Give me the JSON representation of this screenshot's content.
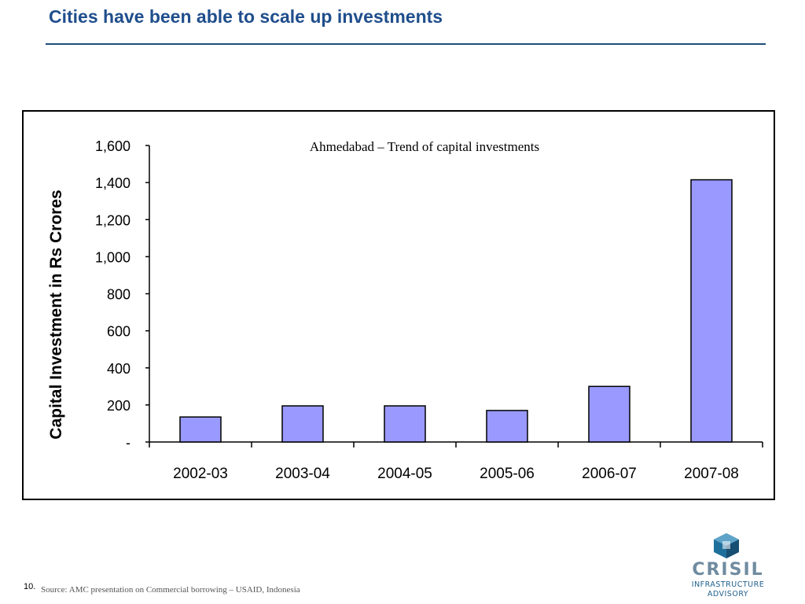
{
  "slide": {
    "title": "Cities have been able to scale up investments",
    "page_number": "10.",
    "source": "Source: AMC presentation on Commercial borrowing – USAID, Indonesia"
  },
  "logo": {
    "name": "CRISIL",
    "line1": "INFRASTRUCTURE",
    "line2": "ADVISORY"
  },
  "colors": {
    "title": "#1f4e8c",
    "bar_fill": "#9999ff",
    "bar_stroke": "#000000"
  },
  "chart_data": {
    "type": "bar",
    "title": "Ahmedabad – Trend of capital investments",
    "xlabel": "",
    "ylabel": "Capital Investment in Rs Crores",
    "categories": [
      "2002-03",
      "2003-04",
      "2004-05",
      "2005-06",
      "2006-07",
      "2007-08"
    ],
    "values": [
      135,
      195,
      195,
      170,
      300,
      1415
    ],
    "ylim": [
      0,
      1600
    ],
    "yticks": [
      0,
      200,
      400,
      600,
      800,
      1000,
      1200,
      1400,
      1600
    ],
    "ytick_labels": [
      "-",
      "200",
      "400",
      "600",
      "800",
      "1,000",
      "1,200",
      "1,400",
      "1,600"
    ],
    "grid": false,
    "legend": "none"
  }
}
